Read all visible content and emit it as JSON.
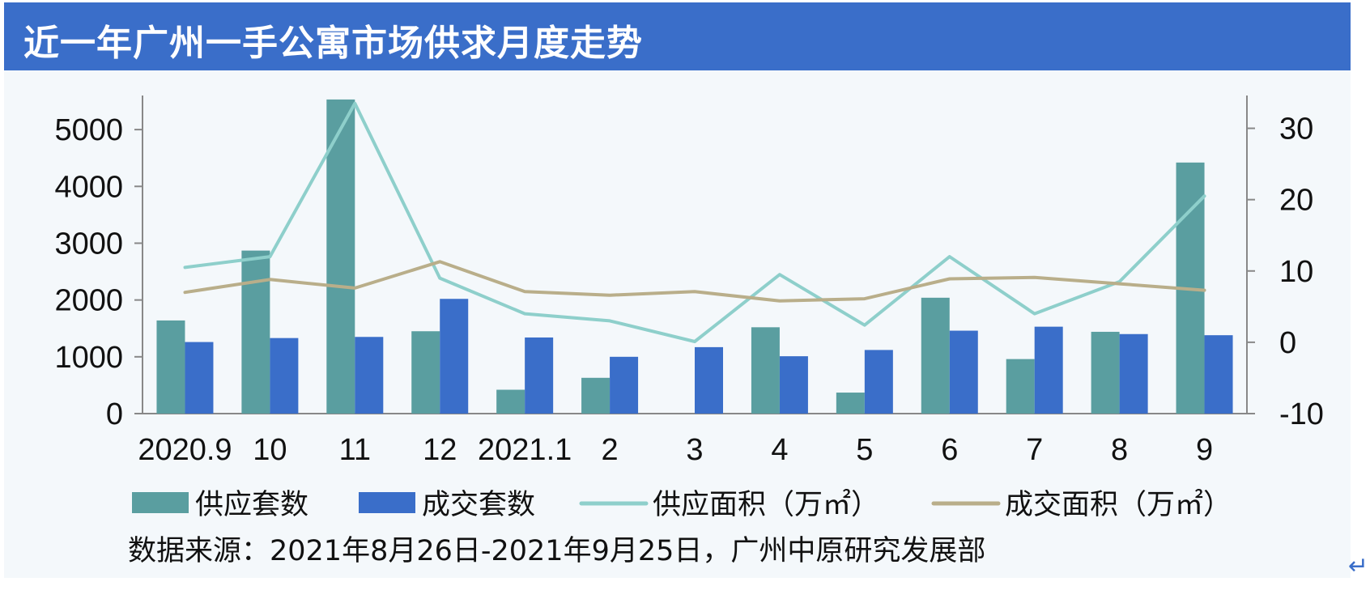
{
  "header": {
    "title": "近一年广州一手公寓市场供求月度走势"
  },
  "source_note": "数据来源：2021年8月26日-2021年9月25日，广州中原研究发展部",
  "return_glyph": "↵",
  "colors": {
    "header_bg": "#3a6ec9",
    "supply_units": "#5a9ea0",
    "deal_units": "#3a6ec9",
    "supply_area": "#8ecfcb",
    "deal_area": "#b9ae8a"
  },
  "chart_data": {
    "type": "bar",
    "categories": [
      "2020.9",
      "10",
      "11",
      "12",
      "2021.1",
      "2",
      "3",
      "4",
      "5",
      "6",
      "7",
      "8",
      "9"
    ],
    "y_left": {
      "ticks": [
        0,
        1000,
        2000,
        3000,
        4000,
        5000
      ],
      "range": [
        0,
        5600
      ]
    },
    "y_right": {
      "ticks": [
        -10,
        0,
        10,
        20,
        30
      ],
      "range": [
        -10,
        34.6
      ]
    },
    "grid": false,
    "legend_position": "bottom",
    "series": [
      {
        "name": "供应套数",
        "kind": "bar",
        "axis": "left",
        "values": [
          1640,
          2870,
          5530,
          1450,
          420,
          630,
          0,
          1520,
          370,
          2040,
          960,
          1440,
          4420
        ]
      },
      {
        "name": "成交套数",
        "kind": "bar",
        "axis": "left",
        "values": [
          1260,
          1330,
          1350,
          2020,
          1340,
          1000,
          1170,
          1010,
          1120,
          1460,
          1530,
          1400,
          1380
        ]
      },
      {
        "name": "供应面积（万㎡）",
        "kind": "line",
        "axis": "right",
        "values": [
          10.5,
          12.0,
          33.5,
          9.0,
          4.0,
          3.0,
          0.1,
          9.5,
          2.4,
          12.0,
          4.0,
          8.5,
          20.5
        ]
      },
      {
        "name": "成交面积（万㎡）",
        "kind": "line",
        "axis": "right",
        "values": [
          7.0,
          8.8,
          7.6,
          11.3,
          7.1,
          6.6,
          7.1,
          5.8,
          6.1,
          8.9,
          9.1,
          8.2,
          7.3
        ]
      }
    ]
  }
}
